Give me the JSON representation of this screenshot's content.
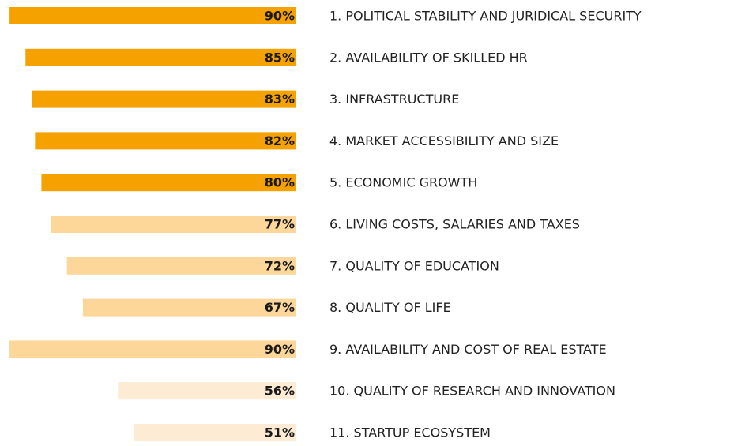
{
  "chart_data": {
    "type": "bar",
    "orientation": "horizontal",
    "categories": [
      "1. POLITICAL STABILITY AND JURIDICAL SECURITY",
      "2. AVAILABILITY OF SKILLED HR",
      "3. INFRASTRUCTURE",
      "4. MARKET ACCESSIBILITY AND SIZE",
      "5. ECONOMIC GROWTH",
      "6. LIVING COSTS, SALARIES AND TAXES",
      "7. QUALITY OF EDUCATION",
      "8. QUALITY OF LIFE",
      "9. AVAILABILITY AND COST OF REAL ESTATE",
      "10. QUALITY OF RESEARCH AND INNOVATION",
      "11. STARTUP ECOSYSTEM"
    ],
    "values": [
      90,
      85,
      83,
      82,
      80,
      77,
      72,
      67,
      90,
      56,
      51
    ],
    "value_labels": [
      "90%",
      "85%",
      "83%",
      "82%",
      "80%",
      "77%",
      "72%",
      "67%",
      "90%",
      "56%",
      "51%"
    ],
    "colors": [
      "#f5a100",
      "#f5a100",
      "#f5a100",
      "#f5a100",
      "#f5a100",
      "#fdd699",
      "#fdd699",
      "#fdd699",
      "#fdd699",
      "#fdebd4",
      "#fdebd4"
    ],
    "xlim": [
      0,
      93
    ]
  }
}
